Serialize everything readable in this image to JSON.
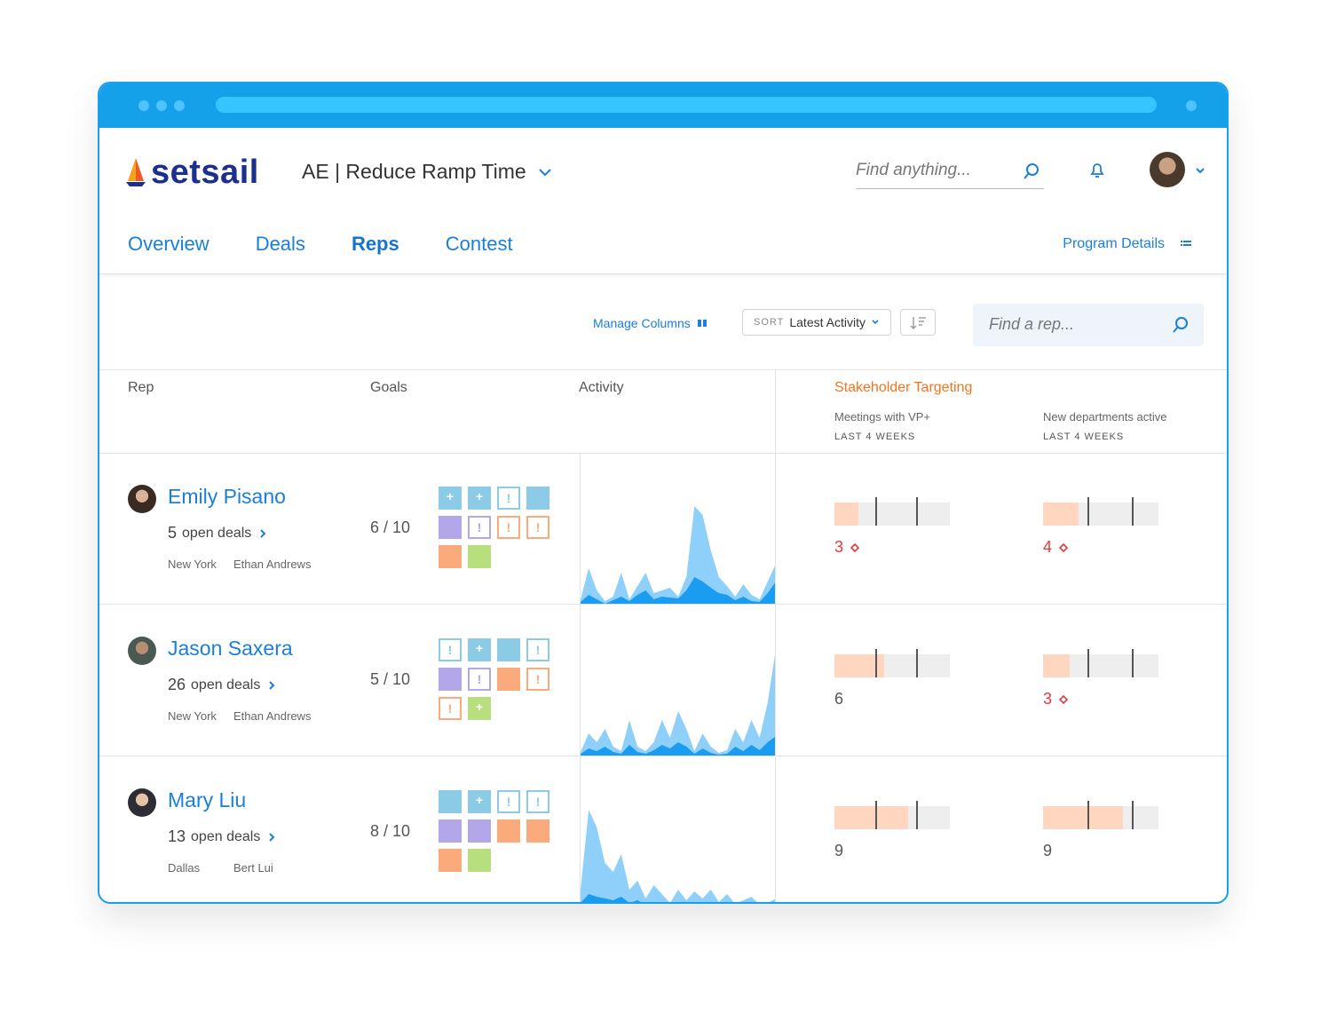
{
  "app": {
    "logo": "setsail",
    "program": "AE | Reduce Ramp Time",
    "search_placeholder": "Find anything...",
    "tabs": [
      {
        "label": "Overview"
      },
      {
        "label": "Deals"
      },
      {
        "label": "Reps"
      },
      {
        "label": "Contest"
      }
    ],
    "program_details": "Program Details"
  },
  "toolbar": {
    "manage_columns": "Manage Columns",
    "sort_label": "SORT",
    "sort_value": "Latest Activity",
    "find_rep_placeholder": "Find a rep..."
  },
  "columns": {
    "rep": "Rep",
    "goals": "Goals",
    "activity": "Activity",
    "stakeholder": "Stakeholder Targeting",
    "meetings": "Meetings with VP+",
    "departments": "New departments active",
    "period": "LAST 4 WEEKS"
  },
  "colors": {
    "accent": "#1a7fdb",
    "alert": "#e03a3a",
    "stakeholder": "#f0751f",
    "sq_blue": "#8bcbe6",
    "sq_purple": "#b3a6e9",
    "sq_orange": "#fbaa7c",
    "sq_green": "#b7df7e"
  },
  "reps": [
    {
      "name": "Emily Pisano",
      "open_deals": "5",
      "open_deals_label": "open deals",
      "location": "New York",
      "manager": "Ethan Andrews",
      "goal": "6 / 10",
      "squares": [
        {
          "c": "blue",
          "t": "filled",
          "g": "+"
        },
        {
          "c": "blue",
          "t": "filled",
          "g": "+"
        },
        {
          "c": "blue",
          "t": "outline",
          "g": "!"
        },
        {
          "c": "blue",
          "t": "filled",
          "g": ""
        },
        {
          "c": "purple",
          "t": "filled",
          "g": ""
        },
        {
          "c": "purple",
          "t": "outline",
          "g": "!"
        },
        {
          "c": "orange",
          "t": "outline",
          "g": "!"
        },
        {
          "c": "orange",
          "t": "outline",
          "g": "!"
        },
        {
          "c": "orange",
          "t": "filled",
          "g": ""
        },
        {
          "c": "green",
          "t": "filled",
          "g": ""
        }
      ],
      "activity_light": [
        5,
        40,
        15,
        3,
        8,
        35,
        5,
        20,
        35,
        12,
        15,
        18,
        8,
        30,
        110,
        100,
        60,
        30,
        20,
        8,
        22,
        10,
        5,
        25,
        45
      ],
      "activity_dark": [
        2,
        10,
        5,
        0,
        4,
        8,
        3,
        10,
        15,
        5,
        8,
        7,
        6,
        15,
        30,
        25,
        18,
        12,
        10,
        4,
        8,
        3,
        2,
        12,
        25
      ],
      "meetings": {
        "value": "3",
        "fill": 0.21,
        "alert": true
      },
      "departments": {
        "value": "4",
        "fill": 0.31,
        "alert": true
      }
    },
    {
      "name": "Jason Saxera",
      "open_deals": "26",
      "open_deals_label": "open deals",
      "location": "New York",
      "manager": "Ethan Andrews",
      "goal": "5 / 10",
      "squares": [
        {
          "c": "blue",
          "t": "outline",
          "g": "!"
        },
        {
          "c": "blue",
          "t": "filled",
          "g": "+"
        },
        {
          "c": "blue",
          "t": "filled",
          "g": ""
        },
        {
          "c": "blue",
          "t": "outline",
          "g": "!"
        },
        {
          "c": "purple",
          "t": "filled",
          "g": ""
        },
        {
          "c": "purple",
          "t": "outline",
          "g": "!"
        },
        {
          "c": "orange",
          "t": "filled",
          "g": ""
        },
        {
          "c": "orange",
          "t": "outline",
          "g": "!"
        },
        {
          "c": "orange",
          "t": "outline",
          "g": "!"
        },
        {
          "c": "green",
          "t": "filled",
          "g": "+"
        }
      ],
      "activity_light": [
        4,
        25,
        15,
        30,
        10,
        5,
        40,
        10,
        5,
        15,
        40,
        20,
        50,
        30,
        5,
        25,
        10,
        3,
        6,
        30,
        15,
        40,
        20,
        60,
        120
      ],
      "activity_dark": [
        2,
        8,
        5,
        10,
        4,
        2,
        12,
        4,
        2,
        6,
        12,
        8,
        15,
        10,
        2,
        8,
        3,
        1,
        2,
        10,
        5,
        12,
        6,
        15,
        22
      ],
      "meetings": {
        "value": "6",
        "fill": 0.43,
        "alert": false
      },
      "departments": {
        "value": "3",
        "fill": 0.23,
        "alert": true
      }
    },
    {
      "name": "Mary Liu",
      "open_deals": "13",
      "open_deals_label": "open deals",
      "location": "Dallas",
      "manager": "Bert Lui",
      "goal": "8 / 10",
      "squares": [
        {
          "c": "blue",
          "t": "filled",
          "g": ""
        },
        {
          "c": "blue",
          "t": "filled",
          "g": "+"
        },
        {
          "c": "blue",
          "t": "outline",
          "g": "!"
        },
        {
          "c": "blue",
          "t": "outline",
          "g": "!"
        },
        {
          "c": "purple",
          "t": "filled",
          "g": ""
        },
        {
          "c": "purple",
          "t": "filled",
          "g": ""
        },
        {
          "c": "orange",
          "t": "filled",
          "g": ""
        },
        {
          "c": "orange",
          "t": "filled",
          "g": ""
        },
        {
          "c": "orange",
          "t": "filled",
          "g": ""
        },
        {
          "c": "green",
          "t": "filled",
          "g": ""
        }
      ],
      "activity_light": [
        20,
        110,
        90,
        50,
        40,
        60,
        20,
        30,
        10,
        25,
        15,
        5,
        20,
        8,
        18,
        10,
        20,
        6,
        15,
        4,
        8,
        12,
        3,
        5,
        10
      ],
      "activity_dark": [
        5,
        15,
        12,
        10,
        8,
        12,
        5,
        8,
        3,
        6,
        4,
        2,
        5,
        2,
        5,
        3,
        5,
        2,
        4,
        1,
        2,
        3,
        1,
        2,
        4
      ],
      "meetings": {
        "value": "9",
        "fill": 0.64,
        "alert": false
      },
      "departments": {
        "value": "9",
        "fill": 0.69,
        "alert": false
      }
    }
  ]
}
